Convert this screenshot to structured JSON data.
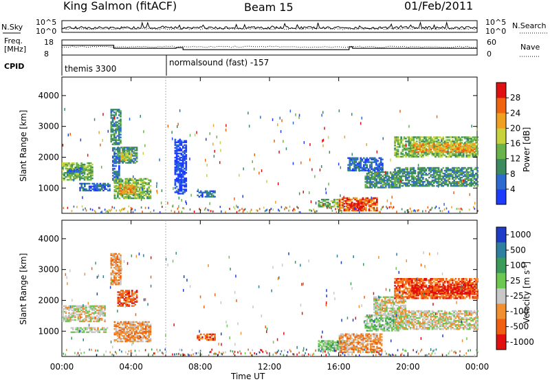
{
  "header": {
    "station": "King Salmon (fitACF)",
    "beam": "Beam 15",
    "date": "01/Feb/2011"
  },
  "noise_panel": {
    "left_label": "N.Sky",
    "right_label": "N.Search",
    "left_ticks": [
      "10^5",
      "10^0"
    ],
    "right_ticks": [
      "10^5",
      "10^0"
    ]
  },
  "freq_panel": {
    "left_label_line1": "Freq.",
    "left_label_line2": "[MHz]",
    "right_label": "Nave",
    "left_ticks": [
      "18",
      "8"
    ],
    "right_ticks": [
      "60",
      "0"
    ],
    "freq_steps": [
      {
        "start_h": 0.0,
        "end_h": 3.0,
        "mhz": 14.6
      },
      {
        "start_h": 3.0,
        "end_h": 6.6,
        "mhz": 12.4
      },
      {
        "start_h": 6.6,
        "end_h": 7.0,
        "mhz": 12.9
      },
      {
        "start_h": 7.0,
        "end_h": 16.6,
        "mhz": 11.4
      },
      {
        "start_h": 16.6,
        "end_h": 16.8,
        "mhz": 13.5
      },
      {
        "start_h": 16.8,
        "end_h": 24.0,
        "mhz": 12.4
      }
    ]
  },
  "cpid_panel": {
    "label": "CPID",
    "modes": [
      {
        "start_h": 0.0,
        "name": "themis 3300"
      },
      {
        "start_h": 6.0,
        "name": "normalsound (fast) -157"
      }
    ]
  },
  "chart_data": [
    {
      "type": "heatmap",
      "name": "Power",
      "ylabel": "Slant Range [km]",
      "xlabel": "Time UT",
      "xlim_h": [
        0,
        24
      ],
      "ylim_km": [
        180,
        4600
      ],
      "y_ticks": [
        1000,
        2000,
        3000,
        4000
      ],
      "x_ticks": [
        "00:00",
        "04:00",
        "08:00",
        "12:00",
        "16:00",
        "20:00",
        "00:00"
      ],
      "colorbar": {
        "label": "Power [dB]",
        "range": [
          0,
          32
        ],
        "ticks": [
          "4",
          "8",
          "12",
          "16",
          "20",
          "24",
          "28"
        ],
        "colors": [
          "#1e3cff",
          "#2e6bd0",
          "#3b8b5f",
          "#6ab34a",
          "#c8d23c",
          "#f0a020",
          "#f06410",
          "#e11010"
        ]
      },
      "regions": [
        {
          "t0": 0.0,
          "t1": 1.8,
          "r0": 1250,
          "r1": 1800,
          "level": 3
        },
        {
          "t0": 0.3,
          "t1": 1.2,
          "r0": 1450,
          "r1": 1650,
          "level": 1
        },
        {
          "t0": 1.0,
          "t1": 2.8,
          "r0": 900,
          "r1": 1150,
          "level": 1
        },
        {
          "t0": 2.8,
          "t1": 3.4,
          "r0": 2400,
          "r1": 3550,
          "level": 2
        },
        {
          "t0": 2.9,
          "t1": 3.3,
          "r0": 1200,
          "r1": 2300,
          "level": 1
        },
        {
          "t0": 3.2,
          "t1": 4.3,
          "r0": 1800,
          "r1": 2300,
          "level": 2
        },
        {
          "t0": 3.4,
          "t1": 4.0,
          "r0": 1900,
          "r1": 2150,
          "level": 4
        },
        {
          "t0": 3.0,
          "t1": 5.1,
          "r0": 650,
          "r1": 1300,
          "level": 3
        },
        {
          "t0": 3.3,
          "t1": 4.2,
          "r0": 800,
          "r1": 1100,
          "level": 5
        },
        {
          "t0": 6.5,
          "t1": 7.2,
          "r0": 800,
          "r1": 2600,
          "level": 0
        },
        {
          "t0": 7.8,
          "t1": 8.8,
          "r0": 700,
          "r1": 900,
          "level": 1
        },
        {
          "t0": 14.8,
          "t1": 16.0,
          "r0": 380,
          "r1": 650,
          "level": 3
        },
        {
          "t0": 16.0,
          "t1": 18.2,
          "r0": 250,
          "r1": 700,
          "level": 6
        },
        {
          "t0": 16.4,
          "t1": 17.4,
          "r0": 300,
          "r1": 520,
          "level": 7
        },
        {
          "t0": 17.5,
          "t1": 19.5,
          "r0": 1000,
          "r1": 1500,
          "level": 2
        },
        {
          "t0": 16.5,
          "t1": 18.5,
          "r0": 1550,
          "r1": 2000,
          "level": 1
        },
        {
          "t0": 19.2,
          "t1": 24.0,
          "r0": 1050,
          "r1": 1650,
          "level": 2
        },
        {
          "t0": 19.2,
          "t1": 24.0,
          "r0": 2000,
          "r1": 2650,
          "level": 3
        },
        {
          "t0": 20.2,
          "t1": 23.8,
          "r0": 2150,
          "r1": 2450,
          "level": 5
        }
      ]
    },
    {
      "type": "heatmap",
      "name": "Velocity",
      "ylabel": "Slant Range [km]",
      "xlabel": "Time UT",
      "xlim_h": [
        0,
        24
      ],
      "ylim_km": [
        180,
        4600
      ],
      "y_ticks": [
        1000,
        2000,
        3000,
        4000
      ],
      "x_ticks": [
        "00:00",
        "04:00",
        "08:00",
        "12:00",
        "16:00",
        "20:00",
        "00:00"
      ],
      "colorbar": {
        "label": "Velocity [m s^-1]",
        "ticks": [
          "1000",
          "500",
          "100",
          "25",
          "-25",
          "-100",
          "-500",
          "-1000"
        ],
        "colors": [
          "#1e3cc8",
          "#2e7fa0",
          "#3b9b5a",
          "#6cc850",
          "#c8c8c8",
          "#f09030",
          "#f06010",
          "#e11010"
        ]
      },
      "regions": [
        {
          "t0": 0.0,
          "t1": 2.5,
          "r0": 1300,
          "r1": 1800,
          "level": 4
        },
        {
          "t0": 0.5,
          "t1": 2.6,
          "r0": 950,
          "r1": 1100,
          "level": 4
        },
        {
          "t0": 2.8,
          "t1": 3.4,
          "r0": 2500,
          "r1": 3500,
          "level": 5
        },
        {
          "t0": 3.2,
          "t1": 4.3,
          "r0": 1800,
          "r1": 2300,
          "level": 6
        },
        {
          "t0": 3.0,
          "t1": 5.1,
          "r0": 650,
          "r1": 1300,
          "level": 5
        },
        {
          "t0": 7.8,
          "t1": 8.8,
          "r0": 700,
          "r1": 900,
          "level": 6
        },
        {
          "t0": 14.8,
          "t1": 16.5,
          "r0": 350,
          "r1": 700,
          "level": 3
        },
        {
          "t0": 16.0,
          "t1": 18.5,
          "r0": 300,
          "r1": 900,
          "level": 5
        },
        {
          "t0": 17.5,
          "t1": 19.5,
          "r0": 1000,
          "r1": 1500,
          "level": 3
        },
        {
          "t0": 18.0,
          "t1": 19.8,
          "r0": 1500,
          "r1": 2100,
          "level": 4
        },
        {
          "t0": 19.2,
          "t1": 24.0,
          "r0": 1050,
          "r1": 1650,
          "level": 4
        },
        {
          "t0": 19.2,
          "t1": 24.0,
          "r0": 2050,
          "r1": 2700,
          "level": 6
        },
        {
          "t0": 20.2,
          "t1": 23.8,
          "r0": 2200,
          "r1": 2500,
          "level": 7
        }
      ]
    }
  ]
}
